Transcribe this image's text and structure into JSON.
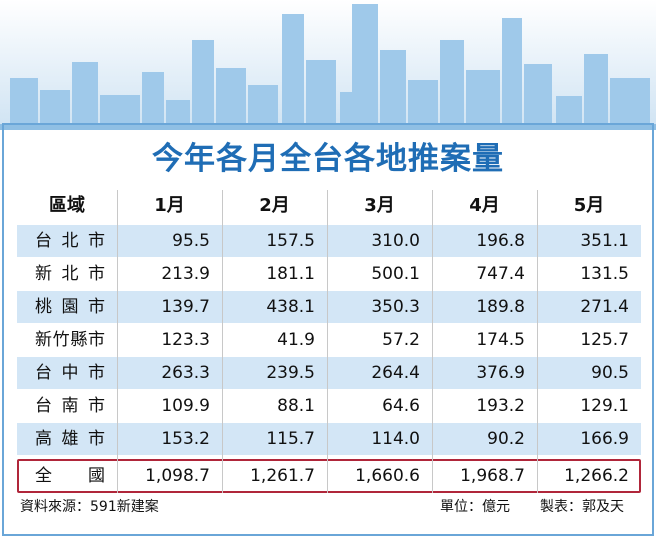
{
  "title": "今年各月全台各地推案量",
  "table": {
    "header": [
      "區域",
      "1月",
      "2月",
      "3月",
      "4月",
      "5月"
    ],
    "rows": [
      [
        "台北市",
        "95.5",
        "157.5",
        "310.0",
        "196.8",
        "351.1"
      ],
      [
        "新北市",
        "213.9",
        "181.1",
        "500.1",
        "747.4",
        "131.5"
      ],
      [
        "桃園市",
        "139.7",
        "438.1",
        "350.3",
        "189.8",
        "271.4"
      ],
      [
        "新竹縣市",
        "123.3",
        "41.9",
        "57.2",
        "174.5",
        "125.7"
      ],
      [
        "台中市",
        "263.3",
        "239.5",
        "264.4",
        "376.9",
        "90.5"
      ],
      [
        "台南市",
        "109.9",
        "88.1",
        "64.6",
        "193.2",
        "129.1"
      ],
      [
        "高雄市",
        "153.2",
        "115.7",
        "114.0",
        "90.2",
        "166.9"
      ]
    ],
    "total": [
      "全國",
      "1,098.7",
      "1,261.7",
      "1,660.6",
      "1,968.7",
      "1,266.2"
    ]
  },
  "footer": {
    "source": "資料來源：591新建案",
    "unit": "單位：億元",
    "credit": "製表：郭及天"
  }
}
